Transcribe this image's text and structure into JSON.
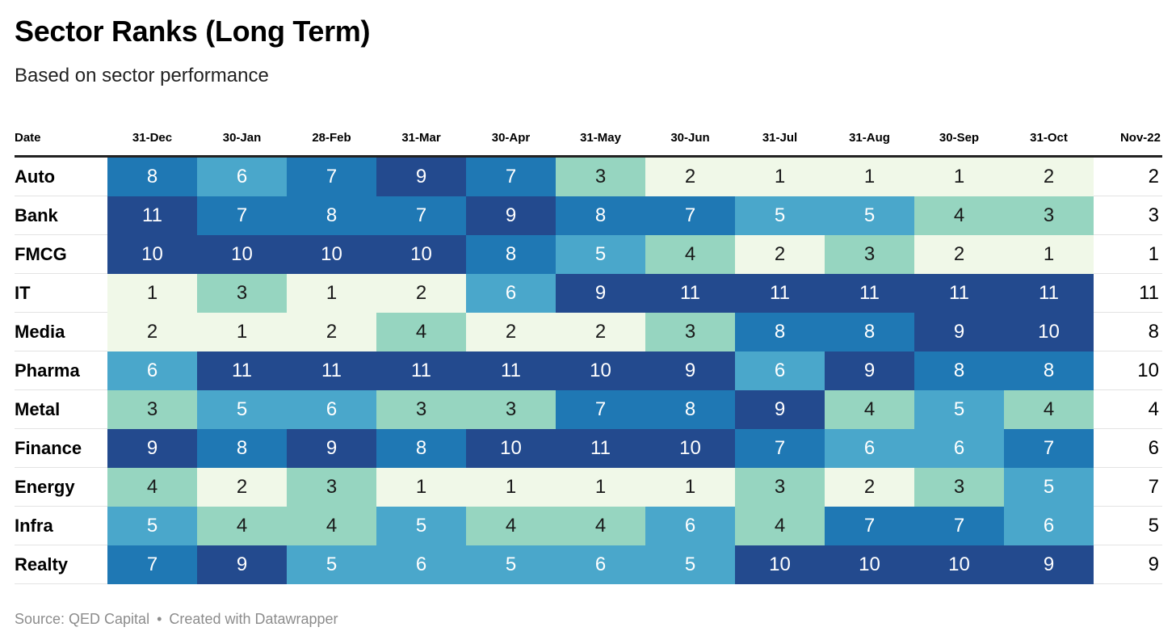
{
  "title": "Sector Ranks (Long Term)",
  "subtitle": "Based on sector performance",
  "footer": {
    "source": "Source: QED Capital",
    "separator": "•",
    "credit": "Created with Datawrapper"
  },
  "colors": {
    "1": "#f0f8e8",
    "2": "#f0f8e8",
    "3": "#96d5c0",
    "4": "#96d5c0",
    "5": "#4aa7cb",
    "6": "#4aa7cb",
    "7": "#1f78b4",
    "8": "#1f78b4",
    "9": "#234a8e",
    "10": "#234a8e",
    "11": "#234a8e",
    "dark_text": "#1a1a1a",
    "light_text": "#ffffff"
  },
  "chart_data": {
    "type": "heatmap",
    "title": "Sector Ranks (Long Term)",
    "subtitle": "Based on sector performance",
    "row_header": "Date",
    "columns": [
      "31-Dec",
      "30-Jan",
      "28-Feb",
      "31-Mar",
      "30-Apr",
      "31-May",
      "30-Jun",
      "31-Jul",
      "31-Aug",
      "30-Sep",
      "31-Oct"
    ],
    "last_column": "Nov-22",
    "rows": [
      {
        "name": "Auto",
        "values": [
          8,
          6,
          7,
          9,
          7,
          3,
          2,
          1,
          1,
          1,
          2
        ],
        "last": 2
      },
      {
        "name": "Bank",
        "values": [
          11,
          7,
          8,
          7,
          9,
          8,
          7,
          5,
          5,
          4,
          3
        ],
        "last": 3
      },
      {
        "name": "FMCG",
        "values": [
          10,
          10,
          10,
          10,
          8,
          5,
          4,
          2,
          3,
          2,
          1
        ],
        "last": 1
      },
      {
        "name": "IT",
        "values": [
          1,
          3,
          1,
          2,
          6,
          9,
          11,
          11,
          11,
          11,
          11
        ],
        "last": 11
      },
      {
        "name": "Media",
        "values": [
          2,
          1,
          2,
          4,
          2,
          2,
          3,
          8,
          8,
          9,
          10
        ],
        "last": 8
      },
      {
        "name": "Pharma",
        "values": [
          6,
          11,
          11,
          11,
          11,
          10,
          9,
          6,
          9,
          8,
          8
        ],
        "last": 10
      },
      {
        "name": "Metal",
        "values": [
          3,
          5,
          6,
          3,
          3,
          7,
          8,
          9,
          4,
          5,
          4
        ],
        "last": 4
      },
      {
        "name": "Finance",
        "values": [
          9,
          8,
          9,
          8,
          10,
          11,
          10,
          7,
          6,
          6,
          7
        ],
        "last": 6
      },
      {
        "name": "Energy",
        "values": [
          4,
          2,
          3,
          1,
          1,
          1,
          1,
          3,
          2,
          3,
          5
        ],
        "last": 7
      },
      {
        "name": "Infra",
        "values": [
          5,
          4,
          4,
          5,
          4,
          4,
          6,
          4,
          7,
          7,
          6
        ],
        "last": 5
      },
      {
        "name": "Realty",
        "values": [
          7,
          9,
          5,
          6,
          5,
          6,
          5,
          10,
          10,
          10,
          9
        ],
        "last": 9
      }
    ]
  }
}
